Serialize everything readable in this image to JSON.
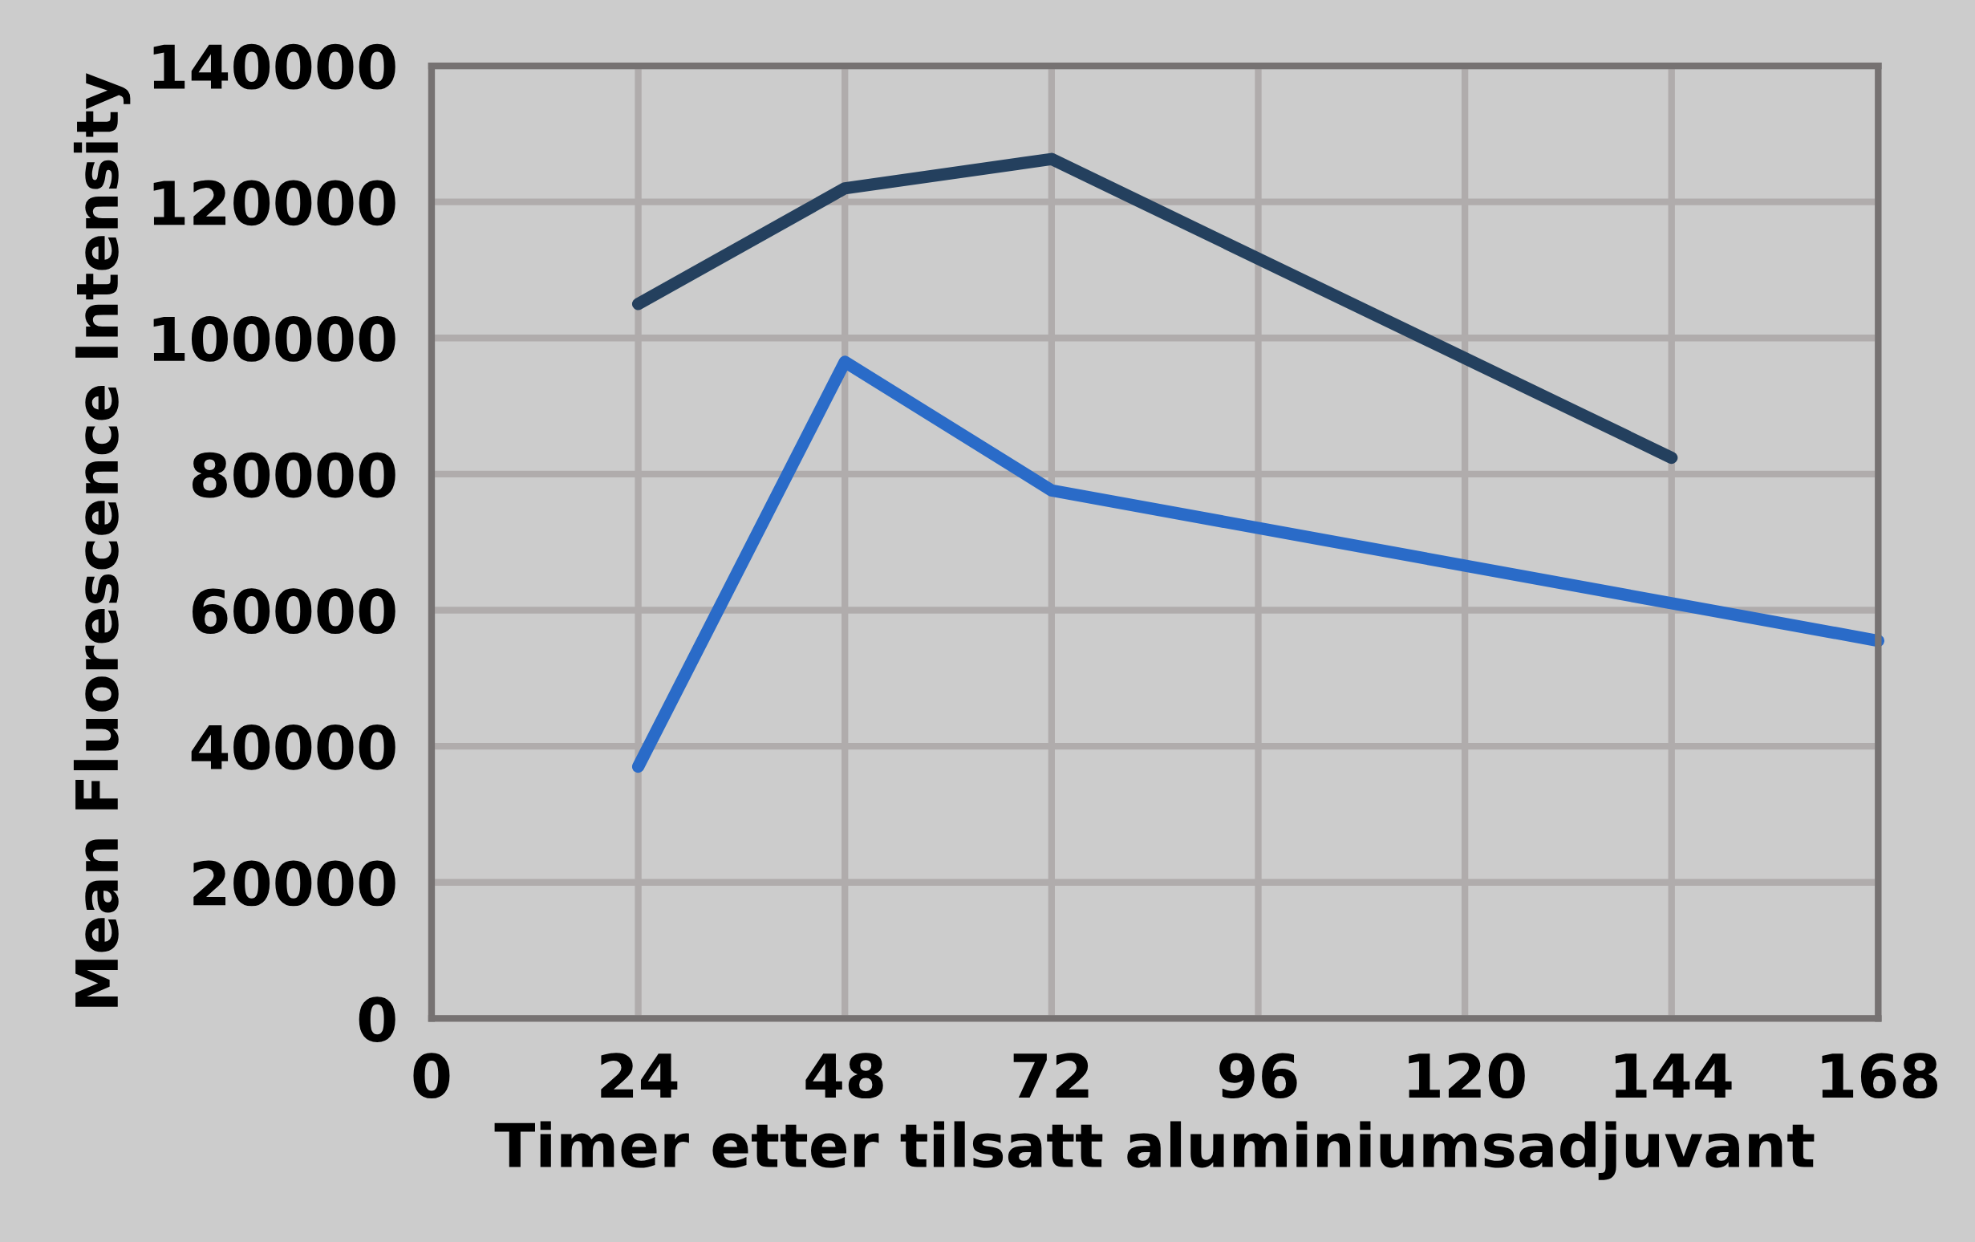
{
  "chart_data": {
    "type": "line",
    "xlabel": "Timer etter tilsatt aluminiumsadjuvant",
    "ylabel": "Mean Fluorescence Intensity",
    "series": [
      {
        "color": "#24405e",
        "x": [
          24,
          48,
          72,
          144
        ],
        "values": [
          105000,
          122000,
          126300,
          82400
        ]
      },
      {
        "color": "#2a6bc8",
        "x": [
          24,
          48,
          72,
          168
        ],
        "values": [
          37000,
          96500,
          77600,
          55500
        ]
      }
    ],
    "xlim": [
      0,
      168
    ],
    "xticks": [
      0,
      24,
      48,
      72,
      96,
      120,
      144,
      168
    ],
    "ylim": [
      0,
      140000
    ],
    "yticks": [
      0,
      20000,
      40000,
      60000,
      80000,
      100000,
      120000,
      140000
    ],
    "grid": true,
    "line_style": "solid"
  }
}
